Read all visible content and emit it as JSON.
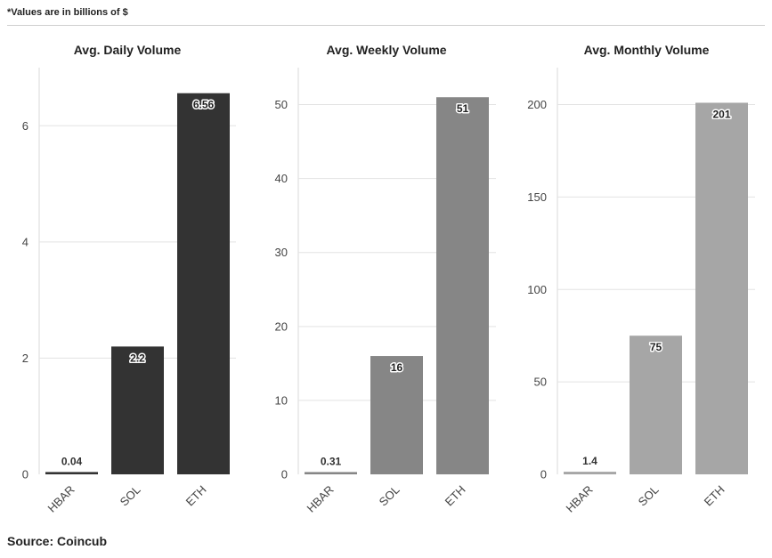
{
  "note": "*Values are in billions of $",
  "source": "Source: Coincub",
  "chart_data": [
    {
      "type": "bar",
      "title": "Avg. Daily Volume",
      "categories": [
        "HBAR",
        "SOL",
        "ETH"
      ],
      "values": [
        0.04,
        2.2,
        6.56
      ],
      "value_labels": [
        "0.04",
        "2.2",
        "6.56"
      ],
      "ylim": [
        0,
        7
      ],
      "yticks": [
        0,
        2,
        4,
        6
      ],
      "bar_color": "#333333",
      "grid": true
    },
    {
      "type": "bar",
      "title": "Avg. Weekly Volume",
      "categories": [
        "HBAR",
        "SOL",
        "ETH"
      ],
      "values": [
        0.31,
        16,
        51
      ],
      "value_labels": [
        "0.31",
        "16",
        "51"
      ],
      "ylim": [
        0,
        55
      ],
      "yticks": [
        0,
        10,
        20,
        30,
        40,
        50
      ],
      "bar_color": "#868686",
      "grid": true
    },
    {
      "type": "bar",
      "title": "Avg. Monthly Volume",
      "categories": [
        "HBAR",
        "SOL",
        "ETH"
      ],
      "values": [
        1.4,
        75,
        201
      ],
      "value_labels": [
        "1.4",
        "75",
        "201"
      ],
      "ylim": [
        0,
        220
      ],
      "yticks": [
        0,
        50,
        100,
        150,
        200
      ],
      "bar_color": "#a6a6a6",
      "grid": true
    }
  ]
}
